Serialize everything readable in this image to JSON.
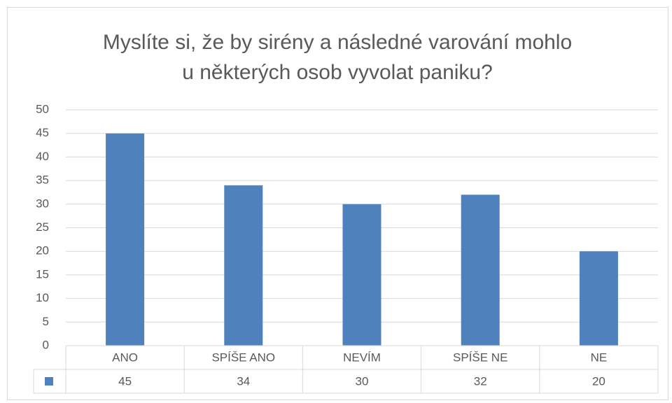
{
  "chart_data": {
    "type": "bar",
    "title": [
      "Myslíte si, že by sirény a následné varování mohlo",
      "u některých osob vyvolat paniku?"
    ],
    "categories": [
      "ANO",
      "SPÍŠE ANO",
      "NEVÍM",
      "SPÍŠE NE",
      "NE"
    ],
    "values": [
      45,
      34,
      30,
      32,
      20
    ],
    "color": "#4f81bd",
    "ylim": [
      0,
      50
    ],
    "yticks": [
      0,
      5,
      10,
      15,
      20,
      25,
      30,
      35,
      40,
      45,
      50
    ],
    "grid": true
  }
}
